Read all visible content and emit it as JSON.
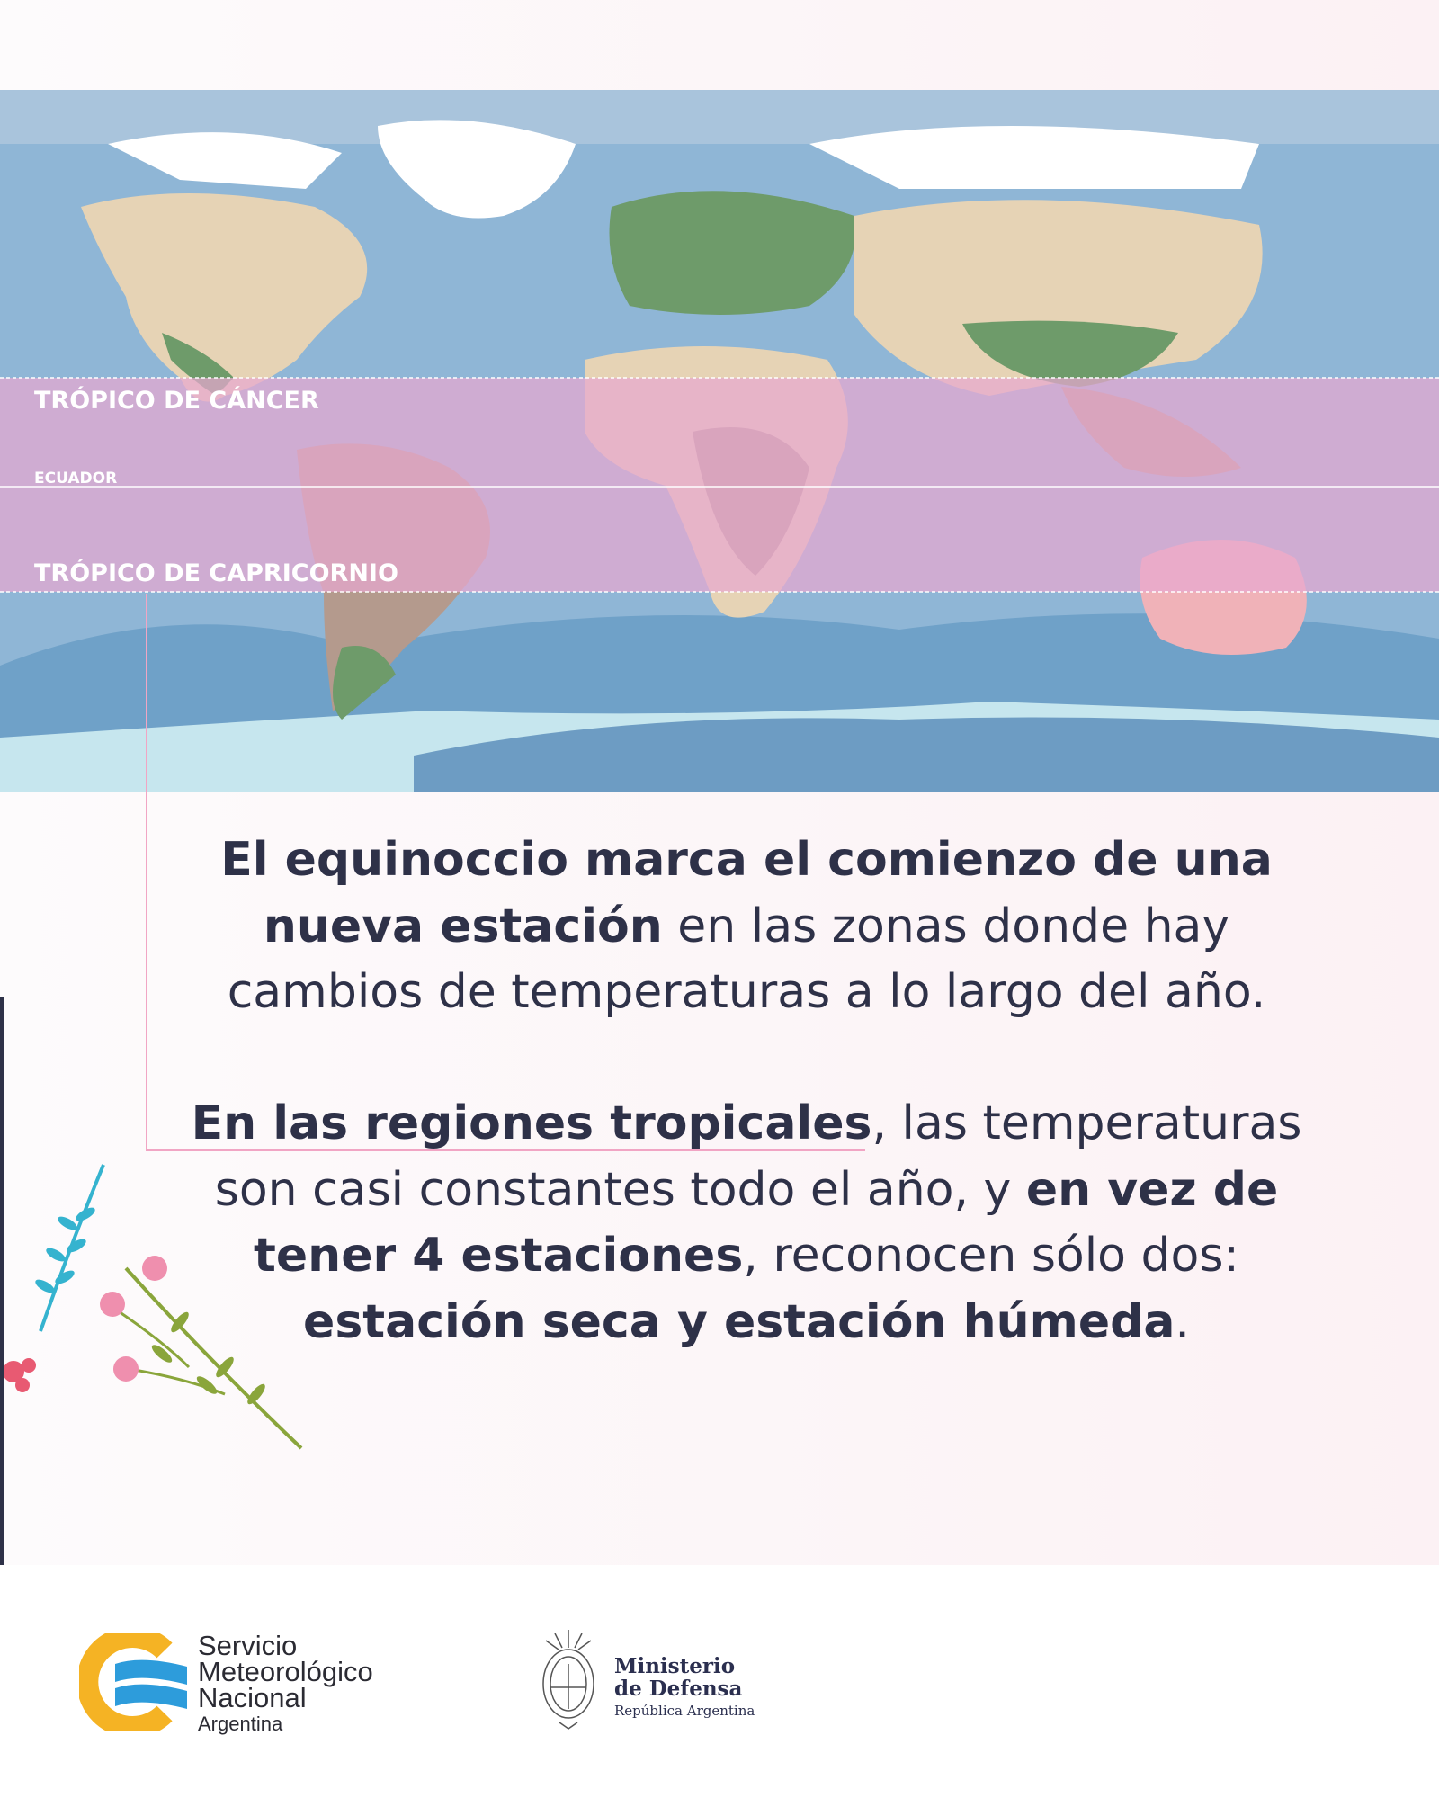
{
  "map": {
    "labels": {
      "tropic_cancer": "TRÓPICO DE CÁNCER",
      "equator": "ECUADOR",
      "tropic_capricorn": "TRÓPICO DE CAPRICORNIO"
    },
    "colors": {
      "ocean": "#8fb6d6",
      "land": "#e6d3b5",
      "forest": "#6e9b6a",
      "tropical_band": "#e7a7d0",
      "ice": "#ffffff"
    }
  },
  "text": {
    "p1": [
      {
        "t": "El equinoccio marca el comienzo de una",
        "b": true
      },
      {
        "t": "nueva estación",
        "b": true
      },
      {
        "t": " en las zonas donde hay",
        "b": false
      },
      {
        "t": "cambios de temperaturas a lo largo del año.",
        "b": false
      }
    ],
    "p2": [
      {
        "t": "En las regiones tropicales",
        "b": true
      },
      {
        "t": ", las temperaturas",
        "b": false
      },
      {
        "t": "son casi constantes todo el año, y ",
        "b": false
      },
      {
        "t": "en vez de",
        "b": true
      },
      {
        "t": "tener 4 estaciones",
        "b": true
      },
      {
        "t": ", reconocen sólo dos:",
        "b": false
      },
      {
        "t": "estación seca y estación húmeda",
        "b": true
      },
      {
        "t": ".",
        "b": false
      }
    ],
    "color": "#2e3148"
  },
  "footer": {
    "smn": {
      "line1": "Servicio",
      "line2": "Meteorológico",
      "line3": "Nacional",
      "line4": "Argentina"
    },
    "ministerio": {
      "line1": "Ministerio",
      "line2": "de Defensa",
      "line3": "República Argentina"
    }
  }
}
